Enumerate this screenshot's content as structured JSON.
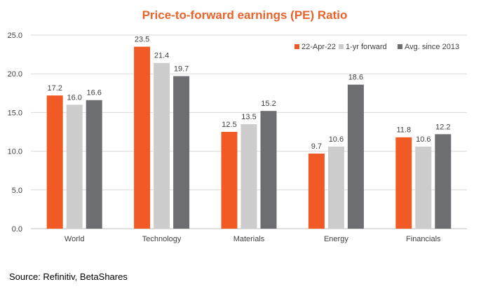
{
  "colors": {
    "title": "#e8632b",
    "series": [
      "#f15a24",
      "#cccccc",
      "#6d6e71"
    ],
    "grid": "#d9d9d9",
    "axis": "#bfbfbf"
  },
  "chart_data": {
    "type": "bar",
    "title": "Price-to-forward earnings (PE) Ratio",
    "xlabel": "",
    "ylabel": "",
    "ylim": [
      0,
      25
    ],
    "yticks": [
      "0.0",
      "5.0",
      "10.0",
      "15.0",
      "20.0",
      "25.0"
    ],
    "ytick_values": [
      0,
      5,
      10,
      15,
      20,
      25
    ],
    "grid": true,
    "legend_position": "top-right",
    "categories": [
      "World",
      "Technology",
      "Materials",
      "Energy",
      "Financials"
    ],
    "series": [
      {
        "name": "22-Apr-22",
        "values": [
          17.2,
          23.5,
          12.5,
          9.7,
          11.8
        ],
        "labels": [
          "17.2",
          "23.5",
          "12.5",
          "9.7",
          "11.8"
        ]
      },
      {
        "name": "1-yr forward",
        "values": [
          16.0,
          21.4,
          13.5,
          10.6,
          10.6
        ],
        "labels": [
          "16.0",
          "21.4",
          "13.5",
          "10.6",
          "10.6"
        ]
      },
      {
        "name": "Avg. since 2013",
        "values": [
          16.6,
          19.7,
          15.2,
          18.6,
          12.2
        ],
        "labels": [
          "16.6",
          "19.7",
          "15.2",
          "18.6",
          "12.2"
        ]
      }
    ]
  },
  "source": "Source:  Refinitiv,  BetaShares"
}
